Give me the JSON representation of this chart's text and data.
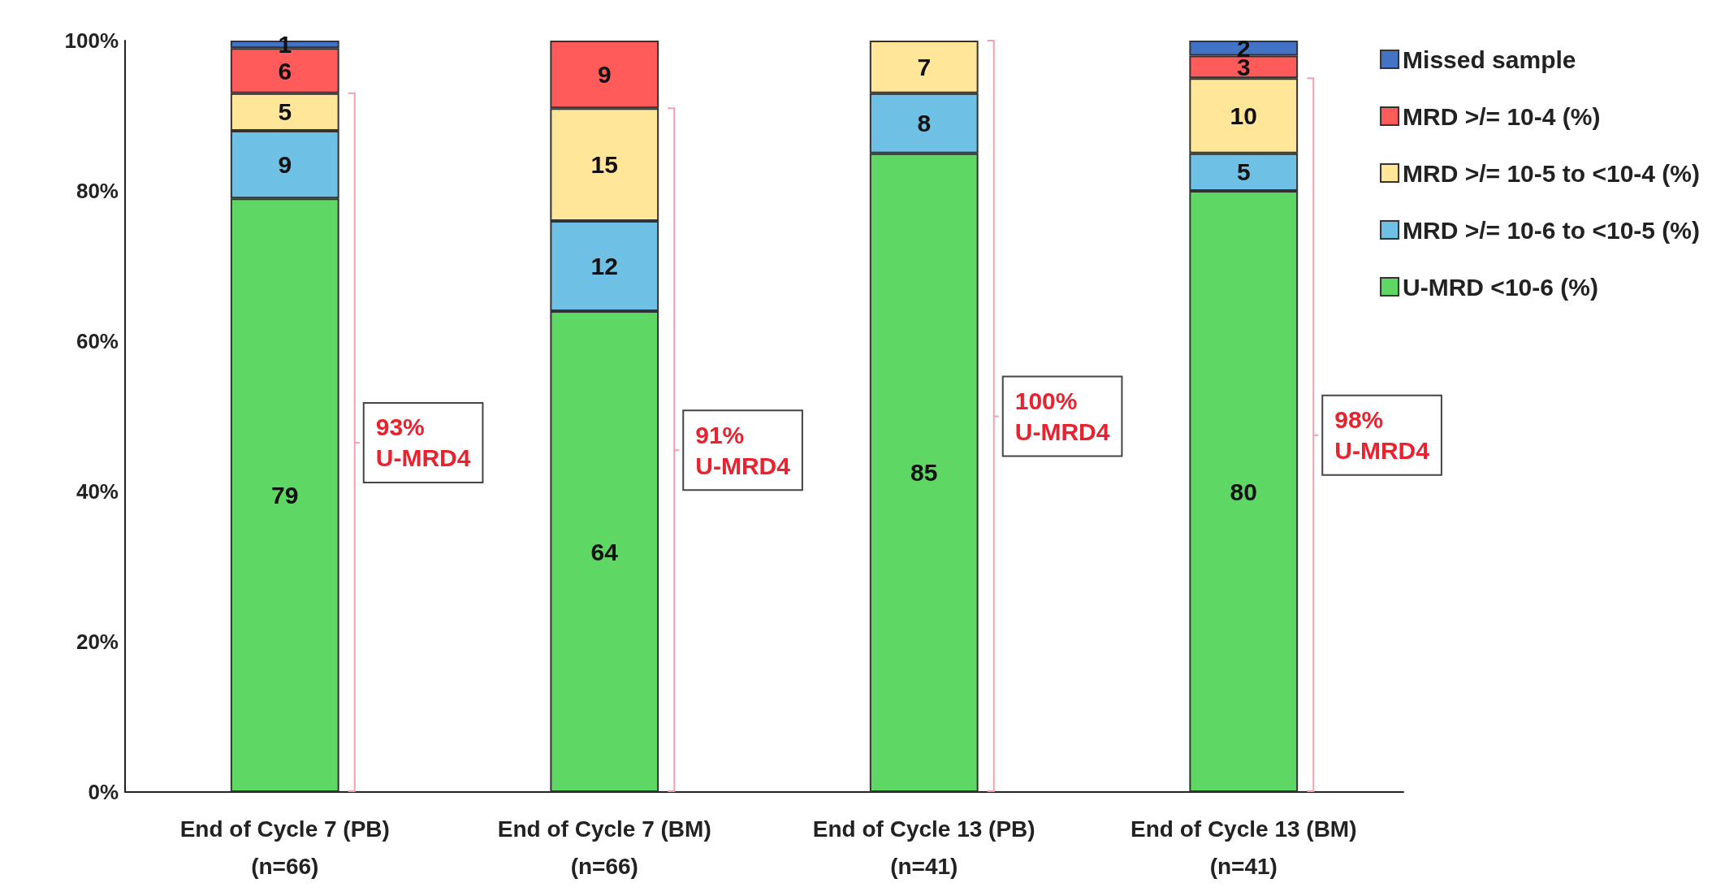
{
  "chart_data": {
    "type": "bar",
    "stacked": true,
    "categories": [
      "End of Cycle 7 (PB)\n(n=66)",
      "End of Cycle 7 (BM)\n(n=66)",
      "End of Cycle 13 (PB)\n(n=41)",
      "End of Cycle 13 (BM)\n(n=41)"
    ],
    "series": [
      {
        "name": "U-MRD <10-6 (%)",
        "color": "#5ed765",
        "values": [
          79,
          64,
          85,
          80
        ],
        "value_labels": [
          "79",
          "64",
          "85",
          "80"
        ]
      },
      {
        "name": "MRD >/= 10-6 to <10-5 (%)",
        "color": "#6ec1e4",
        "values": [
          9,
          12,
          8,
          5
        ],
        "value_labels": [
          "9",
          "12",
          "8",
          "5"
        ]
      },
      {
        "name": "MRD >/= 10-5 to <10-4 (%)",
        "color": "#ffe699",
        "values": [
          5,
          15,
          7,
          10
        ],
        "value_labels": [
          "5",
          "15",
          "7",
          "10"
        ]
      },
      {
        "name": "MRD >/= 10-4 (%)",
        "color": "#ff5b5b",
        "values": [
          6,
          9,
          0,
          3
        ],
        "value_labels": [
          "6",
          "9",
          null,
          "3"
        ]
      },
      {
        "name": "Missed sample",
        "color": "#4472c4",
        "values": [
          1,
          0,
          0,
          2
        ],
        "value_labels": [
          "1",
          null,
          null,
          "2"
        ]
      }
    ],
    "ylim": [
      0,
      100
    ],
    "yticks": [
      {
        "value": 0,
        "label": "0%"
      },
      {
        "value": 20,
        "label": "20%"
      },
      {
        "value": 40,
        "label": "40%"
      },
      {
        "value": 60,
        "label": "60%"
      },
      {
        "value": 80,
        "label": "80%"
      },
      {
        "value": 100,
        "label": "100%"
      }
    ],
    "annotations": [
      "93%\nU-MRD4",
      "91%\nU-MRD4",
      "100%\nU-MRD4",
      "98%\nU-MRD4"
    ],
    "grid": false,
    "legend": "top right"
  }
}
